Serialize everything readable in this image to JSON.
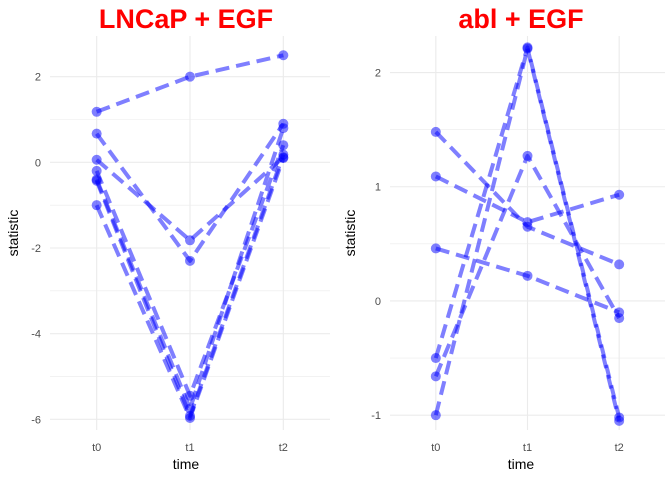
{
  "chart_data": [
    {
      "type": "line",
      "title": "LNCaP + EGF",
      "xlabel": "time",
      "ylabel": "statistic",
      "categories": [
        "t0",
        "t1",
        "t2"
      ],
      "yticks": [
        2,
        0,
        -2,
        -4,
        -6
      ],
      "ylim": [
        -6.25,
        2.95
      ],
      "grid": true,
      "series": [
        {
          "values": [
            1.18,
            2.0,
            2.5
          ]
        },
        {
          "values": [
            0.67,
            -2.3,
            0.9
          ]
        },
        {
          "values": [
            0.06,
            -1.82,
            0.12
          ]
        },
        {
          "values": [
            -0.2,
            -5.45,
            0.4
          ]
        },
        {
          "values": [
            -0.4,
            -5.75,
            0.8
          ]
        },
        {
          "values": [
            -0.43,
            -5.92,
            0.18
          ]
        },
        {
          "values": [
            -1.0,
            -5.97,
            0.1
          ]
        }
      ]
    },
    {
      "type": "line",
      "title": "abl + EGF",
      "xlabel": "time",
      "ylabel": "statistic",
      "categories": [
        "t0",
        "t1",
        "t2"
      ],
      "yticks": [
        2,
        1,
        0,
        -1
      ],
      "ylim": [
        -1.13,
        2.32
      ],
      "grid": true,
      "series": [
        {
          "values": [
            1.48,
            0.65,
            0.32
          ]
        },
        {
          "values": [
            1.09,
            0.69,
            0.93
          ]
        },
        {
          "values": [
            0.46,
            0.22,
            -0.1
          ]
        },
        {
          "values": [
            -0.5,
            2.22,
            -1.02
          ]
        },
        {
          "values": [
            -0.66,
            1.27,
            -0.15
          ]
        },
        {
          "values": [
            -1.0,
            2.21,
            -1.05
          ]
        }
      ]
    }
  ],
  "colors": {
    "title": "#ff0000",
    "series": "#0000ff",
    "grid": "#ebebeb"
  }
}
